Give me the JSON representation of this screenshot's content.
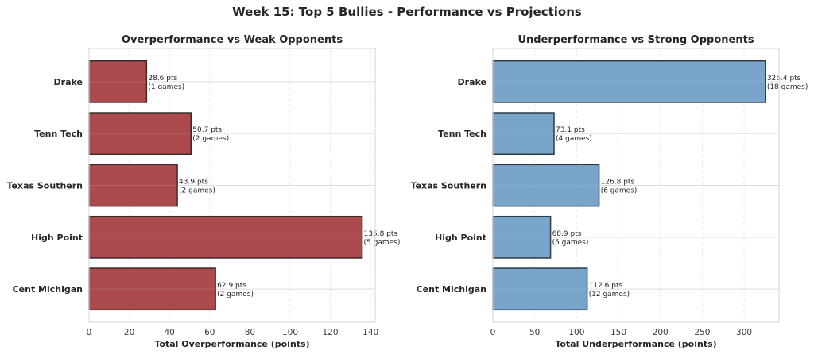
{
  "chart_data": {
    "title": "Week 15: Top 5 Bullies - Performance vs Projections",
    "panels": [
      {
        "type": "bar",
        "orientation": "horizontal",
        "title": "Overperformance vs Weak Opponents",
        "xlabel": "Total Overperformance (points)",
        "ylabel": "",
        "categories": [
          "Drake",
          "Tenn Tech",
          "Texas Southern",
          "High Point",
          "Cent Michigan"
        ],
        "values": [
          28.6,
          50.7,
          43.9,
          135.8,
          62.9
        ],
        "games": [
          1,
          2,
          2,
          5,
          2
        ],
        "labels": [
          [
            "28.6 pts",
            "(1 games)"
          ],
          [
            "50.7 pts",
            "(2 games)"
          ],
          [
            "43.9 pts",
            "(2 games)"
          ],
          [
            "135.8 pts",
            "(5 games)"
          ],
          [
            "62.9 pts",
            "(2 games)"
          ]
        ],
        "xlim": [
          0,
          142.3
        ],
        "xticks": [
          0,
          20,
          40,
          60,
          80,
          100,
          120,
          140
        ],
        "grid": true,
        "color": "#a2373a",
        "edge_color": "#3a2a2a"
      },
      {
        "type": "bar",
        "orientation": "horizontal",
        "title": "Underperformance vs Strong Opponents",
        "xlabel": "Total Underperformance (points)",
        "ylabel": "",
        "categories": [
          "Drake",
          "Tenn Tech",
          "Texas Southern",
          "High Point",
          "Cent Michigan"
        ],
        "values": [
          325.4,
          73.1,
          126.8,
          68.9,
          112.6
        ],
        "games": [
          18,
          4,
          6,
          5,
          12
        ],
        "labels": [
          [
            "325.4 pts",
            "(18 games)"
          ],
          [
            "73.1 pts",
            "(4 games)"
          ],
          [
            "126.8 pts",
            "(6 games)"
          ],
          [
            "68.9 pts",
            "(5 games)"
          ],
          [
            "112.6 pts",
            "(12 games)"
          ]
        ],
        "xlim": [
          0,
          341.7
        ],
        "xticks": [
          0,
          50,
          100,
          150,
          200,
          250,
          300
        ],
        "grid": true,
        "color": "#6a9bc5",
        "edge_color": "#2e3a44"
      }
    ]
  }
}
